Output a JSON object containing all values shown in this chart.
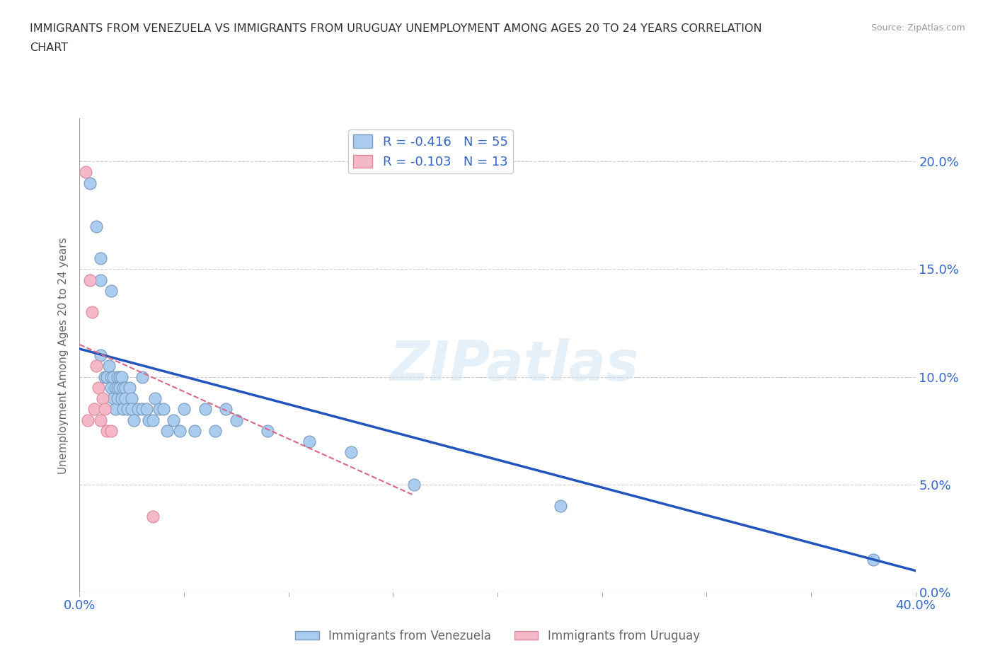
{
  "title_line1": "IMMIGRANTS FROM VENEZUELA VS IMMIGRANTS FROM URUGUAY UNEMPLOYMENT AMONG AGES 20 TO 24 YEARS CORRELATION",
  "title_line2": "CHART",
  "source": "Source: ZipAtlas.com",
  "ylabel": "Unemployment Among Ages 20 to 24 years",
  "xlim": [
    0.0,
    0.4
  ],
  "ylim": [
    0.0,
    0.22
  ],
  "xticks": [
    0.0,
    0.05,
    0.1,
    0.15,
    0.2,
    0.25,
    0.3,
    0.35,
    0.4
  ],
  "yticks": [
    0.0,
    0.05,
    0.1,
    0.15,
    0.2
  ],
  "venezuela_x": [
    0.005,
    0.008,
    0.01,
    0.01,
    0.01,
    0.012,
    0.013,
    0.014,
    0.015,
    0.015,
    0.015,
    0.016,
    0.016,
    0.017,
    0.017,
    0.018,
    0.018,
    0.018,
    0.019,
    0.019,
    0.02,
    0.02,
    0.021,
    0.021,
    0.022,
    0.022,
    0.023,
    0.024,
    0.025,
    0.025,
    0.026,
    0.028,
    0.03,
    0.03,
    0.032,
    0.033,
    0.035,
    0.036,
    0.038,
    0.04,
    0.042,
    0.045,
    0.048,
    0.05,
    0.055,
    0.06,
    0.065,
    0.07,
    0.075,
    0.09,
    0.11,
    0.13,
    0.16,
    0.23,
    0.38
  ],
  "venezuela_y": [
    0.19,
    0.17,
    0.11,
    0.145,
    0.155,
    0.1,
    0.1,
    0.105,
    0.14,
    0.1,
    0.095,
    0.1,
    0.09,
    0.095,
    0.085,
    0.1,
    0.09,
    0.095,
    0.1,
    0.095,
    0.1,
    0.09,
    0.095,
    0.085,
    0.095,
    0.09,
    0.085,
    0.095,
    0.09,
    0.085,
    0.08,
    0.085,
    0.1,
    0.085,
    0.085,
    0.08,
    0.08,
    0.09,
    0.085,
    0.085,
    0.075,
    0.08,
    0.075,
    0.085,
    0.075,
    0.085,
    0.075,
    0.085,
    0.08,
    0.075,
    0.07,
    0.065,
    0.05,
    0.04,
    0.015
  ],
  "uruguay_x": [
    0.003,
    0.004,
    0.005,
    0.006,
    0.007,
    0.008,
    0.009,
    0.01,
    0.011,
    0.012,
    0.013,
    0.015,
    0.035
  ],
  "uruguay_y": [
    0.195,
    0.08,
    0.145,
    0.13,
    0.085,
    0.105,
    0.095,
    0.08,
    0.09,
    0.085,
    0.075,
    0.075,
    0.035
  ],
  "venezuela_color": "#aaccee",
  "uruguay_color": "#f5b8c8",
  "venezuela_edge": "#7799bb",
  "uruguay_edge": "#dd8899",
  "line_venezuela_color": "#2255bb",
  "line_uruguay_color": "#dd6688",
  "legend_r_venezuela": "R = -0.416",
  "legend_n_venezuela": "N = 55",
  "legend_r_uruguay": "R = -0.103",
  "legend_n_uruguay": "N = 13",
  "legend_label_venezuela": "Immigrants from Venezuela",
  "legend_label_uruguay": "Immigrants from Uruguay",
  "watermark": "ZIPatlas",
  "background_color": "#ffffff",
  "grid_color": "#cccccc",
  "title_color": "#333333",
  "axis_label_color": "#666666",
  "tick_color": "#3366cc"
}
